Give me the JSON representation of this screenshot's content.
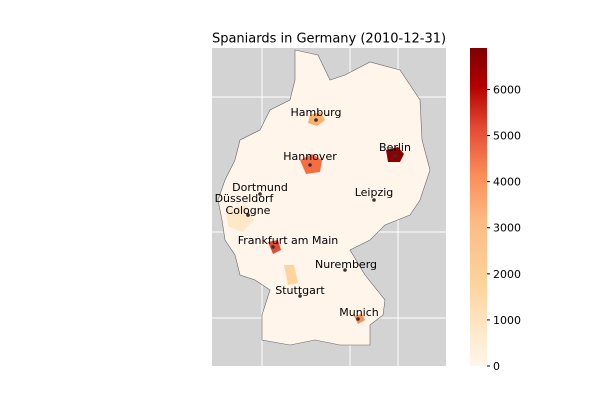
{
  "map": {
    "title": "Spaniards in Germany (2010-12-31)",
    "cities": [
      "Hamburg",
      "Berlin",
      "Hannover",
      "Dortmund",
      "Düsseldorf",
      "Cologne",
      "Leipzig",
      "Frankfurt am Main",
      "Nuremberg",
      "Stuttgart",
      "Munich"
    ],
    "colorbar": {
      "range": [
        0,
        6900
      ],
      "ticks": [
        0,
        1000,
        2000,
        3000,
        4000,
        5000,
        6000
      ]
    }
  }
}
